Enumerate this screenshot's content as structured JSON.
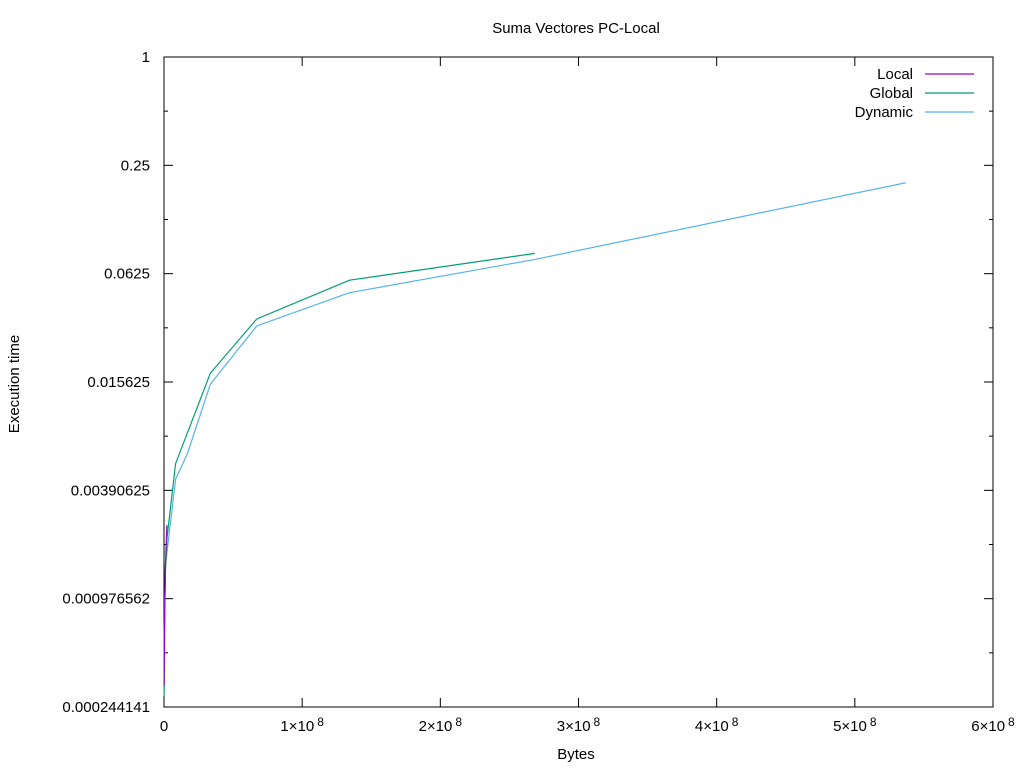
{
  "chart_data": {
    "type": "line",
    "title": "Suma Vectores PC-Local",
    "xlabel": "Bytes",
    "ylabel": "Execution time",
    "xlim": [
      0,
      600000000
    ],
    "ylim": [
      0.000244141,
      1
    ],
    "yscale": "log2",
    "grid": false,
    "legend_position": "top-right",
    "x_ticks": [
      {
        "value": 0,
        "label": "0",
        "exp": ""
      },
      {
        "value": 100000000,
        "label": "1×10",
        "exp": "8"
      },
      {
        "value": 200000000,
        "label": "2×10",
        "exp": "8"
      },
      {
        "value": 300000000,
        "label": "3×10",
        "exp": "8"
      },
      {
        "value": 400000000,
        "label": "4×10",
        "exp": "8"
      },
      {
        "value": 500000000,
        "label": "5×10",
        "exp": "8"
      },
      {
        "value": 600000000,
        "label": "6×10",
        "exp": "8"
      }
    ],
    "y_ticks": [
      {
        "value": 1,
        "label": "1"
      },
      {
        "value": 0.25,
        "label": "0.25"
      },
      {
        "value": 0.0625,
        "label": "0.0625"
      },
      {
        "value": 0.015625,
        "label": "0.015625"
      },
      {
        "value": 0.00390625,
        "label": "0.00390625"
      },
      {
        "value": 0.000976562,
        "label": "0.000976562"
      },
      {
        "value": 0.000244141,
        "label": "0.000244141"
      }
    ],
    "series": [
      {
        "name": "Local",
        "color": "#9400d3",
        "points": [
          [
            65536,
            0.00032
          ],
          [
            131072,
            0.00038
          ],
          [
            262144,
            0.00045
          ],
          [
            524288,
            0.0009
          ],
          [
            1048576,
            0.0015
          ],
          [
            2097152,
            0.0025
          ]
        ]
      },
      {
        "name": "Global",
        "color": "#009e73",
        "points": [
          [
            65536,
            0.00028
          ],
          [
            262144,
            0.0006
          ],
          [
            1048576,
            0.0014
          ],
          [
            2097152,
            0.0021
          ],
          [
            8388608,
            0.0055
          ],
          [
            33554432,
            0.0175
          ],
          [
            67108864,
            0.035
          ],
          [
            134217728,
            0.0575
          ],
          [
            268435456,
            0.081
          ]
        ]
      },
      {
        "name": "Dynamic",
        "color": "#56b4e9",
        "points": [
          [
            65536,
            0.0003
          ],
          [
            262144,
            0.00065
          ],
          [
            1048576,
            0.0015
          ],
          [
            8388608,
            0.0045
          ],
          [
            16777216,
            0.0062
          ],
          [
            33554432,
            0.0152
          ],
          [
            67108864,
            0.032
          ],
          [
            134217728,
            0.049
          ],
          [
            268435456,
            0.075
          ],
          [
            536870912,
            0.2
          ]
        ]
      }
    ]
  }
}
